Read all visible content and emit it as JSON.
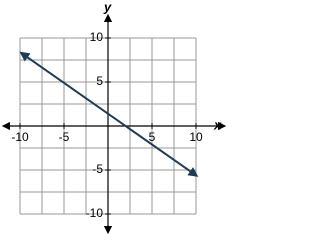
{
  "chart_data": {
    "type": "line",
    "x_label": "x",
    "y_label": "y",
    "xlim": [
      -10,
      10
    ],
    "ylim": [
      -10,
      10
    ],
    "xticks": [
      -10,
      -5,
      5,
      10
    ],
    "yticks": [
      -10,
      -5,
      5,
      10
    ],
    "xgrid": [
      -10,
      -7.5,
      -5,
      -2.5,
      0,
      2.5,
      5,
      7.5,
      10
    ],
    "ygrid": [
      -10,
      -7.5,
      -5,
      -2.5,
      0,
      2.5,
      5,
      7.5,
      10
    ],
    "grid": true,
    "x": [
      -9.6,
      9.8
    ],
    "series": [
      {
        "color": "#1d3c5a",
        "values": [
          8.12,
          -5.46
        ]
      }
    ]
  }
}
